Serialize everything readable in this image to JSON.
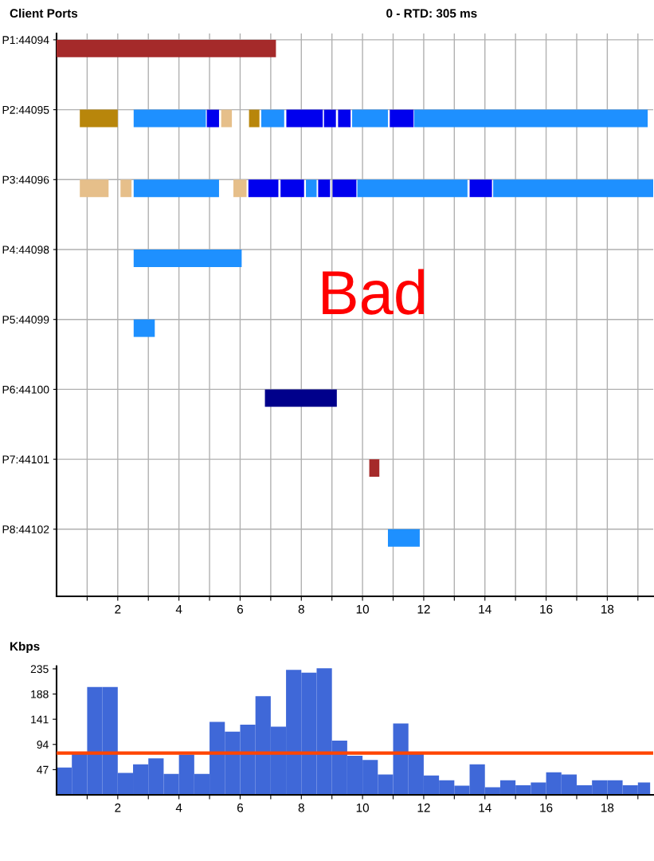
{
  "chart_data": [
    {
      "type": "bar",
      "orientation": "horizontal",
      "title": "0 - RTD: 305 ms",
      "ylabel": "Client Ports",
      "annotations": [
        "Bad"
      ],
      "categories": [
        "P1:44094",
        "P2:44095",
        "P3:44096",
        "P4:44098",
        "P5:44099",
        "P6:44100",
        "P7:44101",
        "P8:44102"
      ],
      "xlim": [
        0,
        19.5
      ],
      "xticks": [
        {
          "value": 1,
          "label": null
        },
        2,
        {
          "value": 3,
          "label": null
        },
        4,
        {
          "value": 5,
          "label": null
        },
        6,
        {
          "value": 7,
          "label": null
        },
        8,
        {
          "value": 9,
          "label": null
        },
        10,
        {
          "value": 11,
          "label": null
        },
        12,
        {
          "value": 13,
          "label": null
        },
        14,
        {
          "value": 15,
          "label": null
        },
        16,
        {
          "value": 17,
          "label": null
        },
        18,
        {
          "value": 19,
          "label": null
        }
      ],
      "grid": true,
      "series": [
        {
          "values": [
            7.17,
            1.24,
            0.94,
            3.53,
            0.69,
            2.35,
            0.33,
            1.04
          ],
          "base": [
            0,
            0.76,
            0.76,
            2.52,
            2.52,
            6.81,
            10.22,
            10.83
          ],
          "colors": [
            "#a52a2a",
            "#b8860b",
            "#e6bf8a",
            "#1e90ff",
            "#1e90ff",
            "#00008b",
            "#a52a2a",
            "#1e90ff"
          ]
        },
        {
          "values": [
            null,
            2.36,
            0.36,
            null,
            null,
            null,
            null,
            null
          ],
          "base": [
            null,
            2.52,
            2.09,
            null,
            null,
            null,
            null,
            null
          ],
          "colors": [
            null,
            "#1e90ff",
            "#e6bf8a",
            null,
            null,
            null,
            null,
            null
          ]
        },
        {
          "values": [
            null,
            0.4,
            2.79,
            null,
            null,
            null,
            null,
            null
          ],
          "base": [
            null,
            4.91,
            2.52,
            null,
            null,
            null,
            null,
            null
          ],
          "colors": [
            null,
            "#0000ee",
            "#1e90ff",
            null,
            null,
            null,
            null,
            null
          ]
        },
        {
          "values": [
            null,
            0.35,
            0.43,
            null,
            null,
            null,
            null,
            null
          ],
          "base": [
            null,
            5.38,
            5.78,
            null,
            null,
            null,
            null,
            null
          ],
          "colors": [
            null,
            "#e6bf8a",
            "#e6bf8a",
            null,
            null,
            null,
            null,
            null
          ]
        },
        {
          "values": [
            null,
            0.34,
            0.98,
            null,
            null,
            null,
            null,
            null
          ],
          "base": [
            null,
            6.29,
            6.27,
            null,
            null,
            null,
            null,
            null
          ],
          "colors": [
            null,
            "#b8860b",
            "#0000ee",
            null,
            null,
            null,
            null,
            null
          ]
        },
        {
          "values": [
            null,
            0.75,
            0.77,
            null,
            null,
            null,
            null,
            null
          ],
          "base": [
            null,
            6.69,
            7.32,
            null,
            null,
            null,
            null,
            null
          ],
          "colors": [
            null,
            "#1e90ff",
            "#0000ee",
            null,
            null,
            null,
            null,
            null
          ]
        },
        {
          "values": [
            null,
            1.19,
            0.35,
            null,
            null,
            null,
            null,
            null
          ],
          "base": [
            null,
            7.51,
            8.15,
            null,
            null,
            null,
            null,
            null
          ],
          "colors": [
            null,
            "#0000ee",
            "#1e90ff",
            null,
            null,
            null,
            null,
            null
          ]
        },
        {
          "values": [
            null,
            0.39,
            0.39,
            null,
            null,
            null,
            null,
            null
          ],
          "base": [
            null,
            8.74,
            8.55,
            null,
            null,
            null,
            null,
            null
          ],
          "colors": [
            null,
            "#0000ee",
            "#0000ee",
            null,
            null,
            null,
            null,
            null
          ]
        },
        {
          "values": [
            null,
            0.41,
            0.78,
            null,
            null,
            null,
            null,
            null
          ],
          "base": [
            null,
            9.2,
            9.02,
            null,
            null,
            null,
            null,
            null
          ],
          "colors": [
            null,
            "#0000ee",
            "#0000ee",
            null,
            null,
            null,
            null,
            null
          ]
        },
        {
          "values": [
            null,
            1.17,
            3.6,
            null,
            null,
            null,
            null,
            null
          ],
          "base": [
            null,
            9.66,
            9.83,
            null,
            null,
            null,
            null,
            null
          ],
          "colors": [
            null,
            "#1e90ff",
            "#1e90ff",
            null,
            null,
            null,
            null,
            null
          ]
        },
        {
          "values": [
            null,
            0.78,
            0.73,
            null,
            null,
            null,
            null,
            null
          ],
          "base": [
            null,
            10.89,
            13.5,
            null,
            null,
            null,
            null,
            null
          ],
          "colors": [
            null,
            "#0000ee",
            "#0000ee",
            null,
            null,
            null,
            null,
            null
          ]
        },
        {
          "values": [
            null,
            7.63,
            5.23,
            null,
            null,
            null,
            null,
            null
          ],
          "base": [
            null,
            11.69,
            14.27,
            null,
            null,
            null,
            null,
            null
          ],
          "colors": [
            null,
            "#1e90ff",
            "#1e90ff",
            null,
            null,
            null,
            null,
            null
          ]
        }
      ]
    },
    {
      "type": "histogram",
      "ylabel": "Kbps",
      "color": "#3f68d8",
      "bins": [
        0,
        0.5,
        1,
        1.5,
        2,
        2.5,
        3,
        3.5,
        4,
        4.5,
        5,
        5.5,
        6,
        6.5,
        7,
        7.5,
        8,
        8.5,
        9,
        9.5,
        10,
        10.5,
        11,
        11.5,
        12,
        12.5,
        13,
        13.5,
        14,
        14.5,
        15,
        15.5,
        16,
        16.5,
        17,
        17.5,
        18,
        18.5,
        19,
        19.4
      ],
      "values": [
        51,
        80,
        201,
        201,
        41,
        57,
        68,
        39,
        75,
        39,
        136,
        118,
        131,
        184,
        127,
        233,
        228,
        236,
        101,
        73,
        65,
        38,
        133,
        76,
        36,
        27,
        17,
        57,
        14,
        27,
        18,
        23,
        42,
        38,
        18,
        27,
        27,
        18,
        23
      ],
      "xlim": [
        0,
        19.5
      ],
      "ylim": [
        0,
        240
      ],
      "xticks": [
        {
          "value": 1,
          "label": null
        },
        2,
        {
          "value": 3,
          "label": null
        },
        4,
        {
          "value": 5,
          "label": null
        },
        6,
        {
          "value": 7,
          "label": null
        },
        8,
        {
          "value": 9,
          "label": null
        },
        10,
        {
          "value": 11,
          "label": null
        },
        12,
        {
          "value": 13,
          "label": null
        },
        14,
        {
          "value": 15,
          "label": null
        },
        16,
        {
          "value": 17,
          "label": null
        },
        18,
        {
          "value": 19,
          "label": null
        }
      ],
      "yticks": [
        47,
        94,
        141,
        188,
        235
      ],
      "ref_lines": [
        {
          "axis": "y",
          "value": 78,
          "color": "#ff4500"
        }
      ],
      "grid": false
    }
  ]
}
